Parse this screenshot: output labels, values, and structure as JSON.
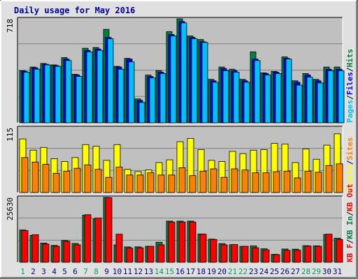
{
  "chart_data": {
    "type": "bar",
    "title": "Daily usage for May 2016",
    "categories": [
      "1",
      "2",
      "3",
      "4",
      "5",
      "6",
      "7",
      "8",
      "9",
      "10",
      "11",
      "12",
      "13",
      "14",
      "15",
      "16",
      "17",
      "18",
      "19",
      "20",
      "21",
      "22",
      "23",
      "24",
      "25",
      "26",
      "27",
      "28",
      "29",
      "30",
      "31"
    ],
    "weekend_days": [
      "1",
      "7",
      "8",
      "14",
      "15",
      "21",
      "22",
      "28",
      "29"
    ],
    "colors": {
      "hits": "#008040",
      "files": "#0000ff",
      "pages": "#00c0ff",
      "visits": "#ffff00",
      "sites": "#ff8000",
      "kb_in": "#008040",
      "kb_out": "#ff0000",
      "plot_background": "#c0c0c0",
      "page_background": "#e0e0e0",
      "weekend_label": "#00a060",
      "weekday_label": "#000080"
    },
    "panels": [
      {
        "id": "pages-files-hits",
        "max_label": "718",
        "ymax": 718,
        "series": [
          {
            "name": "Hits",
            "color": "#008040",
            "values": [
              360,
              385,
              410,
              400,
              450,
              335,
              515,
              520,
              645,
              390,
              445,
              165,
              330,
              360,
              630,
              718,
              600,
              575,
              300,
              385,
              370,
              300,
              490,
              345,
              355,
              455,
              290,
              340,
              300,
              385,
              385
            ]
          },
          {
            "name": "Files",
            "color": "#0000ff",
            "values": [
              355,
              380,
              405,
              395,
              440,
              330,
              500,
              510,
              590,
              385,
              440,
              155,
              320,
              350,
              610,
              700,
              590,
              560,
              290,
              375,
              360,
              290,
              440,
              340,
              350,
              445,
              280,
              330,
              290,
              370,
              370
            ]
          },
          {
            "name": "Pages",
            "color": "#00c0ff",
            "values": [
              350,
              370,
              400,
              390,
              430,
              320,
              490,
              500,
              580,
              370,
              420,
              140,
              310,
              340,
              600,
              690,
              580,
              555,
              280,
              360,
              350,
              280,
              430,
              330,
              340,
              440,
              260,
              315,
              275,
              360,
              360
            ]
          }
        ],
        "legend": [
          "Pages",
          "/",
          "Files",
          "/",
          "Hits"
        ]
      },
      {
        "id": "visits-sites",
        "max_label": "115",
        "ymax": 115,
        "series": [
          {
            "name": "Visits",
            "color": "#ffff00",
            "values": [
              95,
              75,
              80,
              60,
              55,
              62,
              85,
              82,
              57,
              85,
              41,
              37,
              40,
              53,
              58,
              90,
              96,
              76,
              57,
              55,
              73,
              69,
              75,
              76,
              87,
              86,
              53,
              77,
              59,
              84,
              104
            ]
          },
          {
            "name": "Sites",
            "color": "#ff8000",
            "values": [
              62,
              54,
              50,
              34,
              38,
              43,
              49,
              41,
              27,
              45,
              31,
              31,
              35,
              31,
              31,
              44,
              30,
              38,
              42,
              27,
              42,
              40,
              35,
              35,
              37,
              38,
              26,
              38,
              36,
              48,
              51
            ]
          }
        ],
        "legend": [
          "Visits",
          "/",
          "Sites"
        ]
      },
      {
        "id": "kb",
        "max_label": "25630",
        "ymax": 25630,
        "series": [
          {
            "name": "KB In",
            "color": "#008040",
            "values": [
              12750,
              10650,
              7620,
              6660,
              8600,
              7430,
              18600,
              17150,
              25630,
              6900,
              6050,
              6100,
              6300,
              7910,
              16250,
              16250,
              16250,
              11150,
              9150,
              7390,
              6950,
              6280,
              6470,
              5320,
              3130,
              5250,
              5170,
              6550,
              6480,
              11000,
              9500
            ]
          },
          {
            "name": "KB Out",
            "color": "#ff0000",
            "values": [
              12500,
              10900,
              7200,
              6300,
              8300,
              6900,
              18800,
              17500,
              25500,
              11100,
              5600,
              5700,
              6300,
              6900,
              15900,
              15900,
              15900,
              11100,
              9000,
              6900,
              7000,
              6300,
              5700,
              4900,
              3000,
              4700,
              4800,
              6400,
              6300,
              11100,
              9000
            ]
          }
        ],
        "legend": [
          "KB F",
          "/",
          "KB In",
          "/",
          "KB Out"
        ]
      }
    ]
  }
}
